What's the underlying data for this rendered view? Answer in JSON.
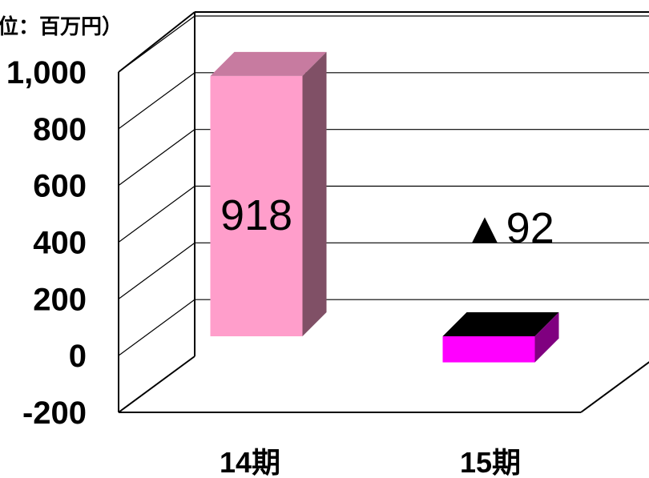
{
  "chart_data": {
    "type": "bar",
    "title": "",
    "unit_label": "位：百万円）",
    "categories": [
      "14期",
      "15期"
    ],
    "values": [
      918,
      -92
    ],
    "data_labels": [
      "918",
      "▲92"
    ],
    "ylim": [
      -200,
      1000
    ],
    "yticks": [
      -200,
      0,
      200,
      400,
      600,
      800,
      1000
    ],
    "ytick_labels": [
      "-200",
      "0",
      "200",
      "400",
      "600",
      "800",
      "1,000"
    ],
    "grid": true,
    "legend": "none",
    "colors": {
      "bar_14_front": "#ff9ecb",
      "bar_14_top": "#c77ba0",
      "bar_14_side": "#805066",
      "bar_15_front": "#ff00ff",
      "bar_15_top": "#000000",
      "bar_15_side": "#800080"
    }
  }
}
